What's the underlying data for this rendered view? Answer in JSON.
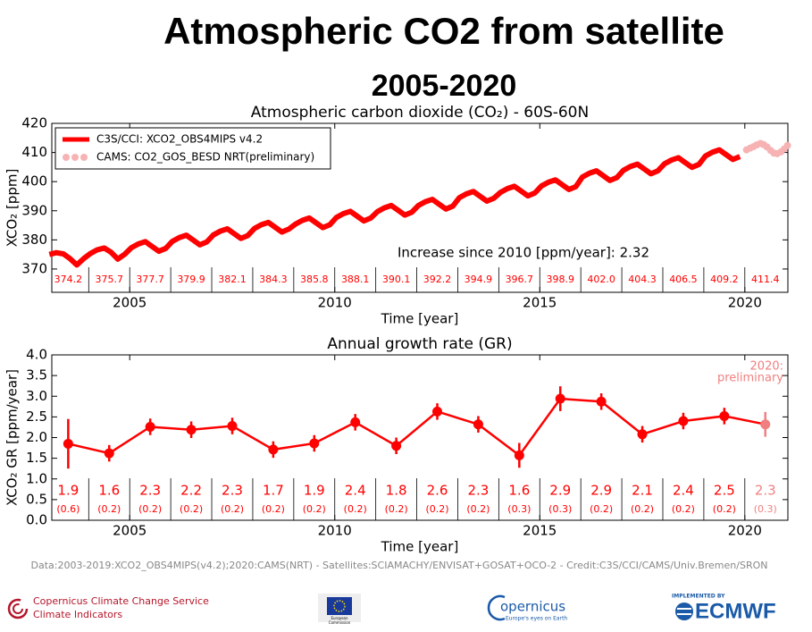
{
  "header": {
    "title": "Atmospheric CO2 from satellite",
    "subtitle": "2005-2020"
  },
  "chart_data": [
    {
      "type": "line",
      "title": "Atmospheric carbon dioxide (CO₂) - 60S-60N",
      "xlabel": "Time [year]",
      "ylabel": "XCO₂ [ppm]",
      "xlim": [
        2003.1,
        2021.05
      ],
      "ylim": [
        362,
        420
      ],
      "xticks": [
        2005,
        2010,
        2015,
        2020
      ],
      "yticks": [
        370,
        380,
        390,
        400,
        410,
        420
      ],
      "legend": "upper left",
      "series": [
        {
          "name": "C3S/CCI: XCO2_OBS4MIPS v4.2",
          "color": "#ff0000",
          "style": "line",
          "x": [
            2003.04,
            2003.21,
            2003.38,
            2003.54,
            2003.71,
            2003.88,
            2004.04,
            2004.21,
            2004.38,
            2004.54,
            2004.71,
            2004.88,
            2005.04,
            2005.21,
            2005.38,
            2005.54,
            2005.71,
            2005.88,
            2006.04,
            2006.21,
            2006.38,
            2006.54,
            2006.71,
            2006.88,
            2007.04,
            2007.21,
            2007.38,
            2007.54,
            2007.71,
            2007.88,
            2008.04,
            2008.21,
            2008.38,
            2008.54,
            2008.71,
            2008.88,
            2009.04,
            2009.21,
            2009.38,
            2009.54,
            2009.71,
            2009.88,
            2010.04,
            2010.21,
            2010.38,
            2010.54,
            2010.71,
            2010.88,
            2011.04,
            2011.21,
            2011.38,
            2011.54,
            2011.71,
            2011.88,
            2012.04,
            2012.21,
            2012.38,
            2012.54,
            2012.71,
            2012.88,
            2013.04,
            2013.21,
            2013.38,
            2013.54,
            2013.71,
            2013.88,
            2014.04,
            2014.21,
            2014.38,
            2014.54,
            2014.71,
            2014.88,
            2015.04,
            2015.21,
            2015.38,
            2015.54,
            2015.71,
            2015.88,
            2016.04,
            2016.21,
            2016.38,
            2016.54,
            2016.71,
            2016.88,
            2017.04,
            2017.21,
            2017.38,
            2017.54,
            2017.71,
            2017.88,
            2018.04,
            2018.21,
            2018.38,
            2018.54,
            2018.71,
            2018.88,
            2019.04,
            2019.21,
            2019.38,
            2019.54,
            2019.71,
            2019.88
          ],
          "values": [
            375.0,
            375.6,
            375.2,
            373.6,
            371.4,
            373.6,
            375.3,
            376.6,
            377.2,
            375.8,
            373.4,
            375.1,
            377.3,
            378.6,
            379.4,
            377.8,
            376.1,
            377.1,
            379.5,
            380.8,
            381.6,
            380.0,
            378.3,
            379.3,
            381.7,
            383.0,
            383.8,
            382.2,
            380.5,
            381.5,
            383.9,
            385.2,
            386.0,
            384.4,
            382.7,
            383.7,
            385.4,
            386.7,
            387.5,
            385.9,
            384.2,
            385.2,
            387.7,
            389.0,
            389.8,
            388.2,
            386.5,
            387.5,
            389.7,
            391.0,
            391.8,
            390.2,
            388.5,
            389.5,
            391.8,
            393.1,
            393.9,
            392.3,
            390.6,
            391.6,
            394.5,
            395.8,
            396.6,
            395.0,
            393.3,
            394.3,
            396.3,
            397.6,
            398.4,
            396.8,
            395.1,
            396.1,
            398.5,
            399.8,
            400.6,
            399.0,
            397.3,
            398.3,
            401.6,
            402.9,
            403.7,
            402.1,
            400.4,
            401.4,
            403.9,
            405.2,
            406.0,
            404.4,
            402.7,
            403.7,
            406.1,
            407.4,
            408.2,
            406.6,
            404.9,
            405.9,
            408.8,
            410.1,
            410.9,
            409.3,
            407.6,
            408.6
          ]
        },
        {
          "name": "CAMS: CO2_GOS_BESD NRT(preliminary)",
          "color": "#f7b3b3",
          "style": "dots",
          "x": [
            2020.04,
            2020.13,
            2020.21,
            2020.29,
            2020.38,
            2020.46,
            2020.54,
            2020.63,
            2020.71,
            2020.79,
            2020.88,
            2020.96,
            2021.04
          ],
          "values": [
            410.9,
            411.5,
            412.0,
            412.6,
            413.1,
            412.7,
            411.9,
            410.7,
            409.8,
            409.6,
            410.2,
            411.2,
            412.4
          ]
        }
      ],
      "annual_means": {
        "x": [
          2003.5,
          2004.5,
          2005.5,
          2006.5,
          2007.5,
          2008.5,
          2009.5,
          2010.5,
          2011.5,
          2012.5,
          2013.5,
          2014.5,
          2015.5,
          2016.5,
          2017.5,
          2018.5,
          2019.5,
          2020.5
        ],
        "values": [
          374.2,
          375.7,
          377.7,
          379.9,
          382.1,
          384.3,
          385.8,
          388.1,
          390.1,
          392.2,
          394.9,
          396.7,
          398.9,
          402.0,
          404.3,
          406.5,
          409.2,
          411.4
        ],
        "value_labels": [
          "374.2",
          "375.7",
          "377.7",
          "379.9",
          "382.1",
          "384.3",
          "385.8",
          "388.1",
          "390.1",
          "392.2",
          "394.9",
          "396.7",
          "398.9",
          "402.0",
          "404.3",
          "406.5",
          "409.2",
          "411.4"
        ]
      },
      "annotation": "Increase since 2010 [ppm/year]: 2.32"
    },
    {
      "type": "errorbar",
      "title": "Annual growth rate (GR)",
      "xlabel": "Time [year]",
      "ylabel": "XCO₂ GR [ppm/year]",
      "xlim": [
        2003.1,
        2021.05
      ],
      "ylim": [
        0,
        4
      ],
      "xticks": [
        2005,
        2010,
        2015,
        2020
      ],
      "yticks": [
        {
          "value": 0,
          "label": "0.0"
        },
        0.5,
        {
          "value": 1,
          "label": "1.0"
        },
        1.5,
        {
          "value": 2,
          "label": "2.0"
        },
        2.5,
        {
          "value": 3,
          "label": "3.0"
        },
        3.5,
        {
          "value": 4,
          "label": "4.0"
        }
      ],
      "color": "#ff0000",
      "x": [
        2003.5,
        2004.5,
        2005.5,
        2006.5,
        2007.5,
        2008.5,
        2009.5,
        2010.5,
        2011.5,
        2012.5,
        2013.5,
        2014.5,
        2015.5,
        2016.5,
        2017.5,
        2018.5,
        2019.5,
        2020.5
      ],
      "values": [
        1.85,
        1.62,
        2.26,
        2.19,
        2.28,
        1.71,
        1.86,
        2.37,
        1.8,
        2.63,
        2.32,
        1.57,
        2.94,
        2.87,
        2.08,
        2.4,
        2.52,
        2.32
      ],
      "errors": [
        0.6,
        0.2,
        0.2,
        0.2,
        0.2,
        0.2,
        0.2,
        0.2,
        0.2,
        0.2,
        0.2,
        0.3,
        0.3,
        0.2,
        0.2,
        0.2,
        0.2,
        0.3
      ],
      "value_labels": [
        "1.9",
        "1.6",
        "2.3",
        "2.2",
        "2.3",
        "1.7",
        "1.9",
        "2.4",
        "1.8",
        "2.6",
        "2.3",
        "1.6",
        "2.9",
        "2.9",
        "2.1",
        "2.4",
        "2.5",
        "2.3"
      ],
      "error_labels": [
        "(0.6)",
        "(0.2)",
        "(0.2)",
        "(0.2)",
        "(0.2)",
        "(0.2)",
        "(0.2)",
        "(0.2)",
        "(0.2)",
        "(0.2)",
        "(0.2)",
        "(0.3)",
        "(0.3)",
        "(0.2)",
        "(0.2)",
        "(0.2)",
        "(0.2)",
        "(0.3)"
      ],
      "colors": [
        "#ff0000",
        "#ff0000",
        "#ff0000",
        "#ff0000",
        "#ff0000",
        "#ff0000",
        "#ff0000",
        "#ff0000",
        "#ff0000",
        "#ff0000",
        "#ff0000",
        "#ff0000",
        "#ff0000",
        "#ff0000",
        "#ff0000",
        "#ff0000",
        "#ff0000",
        "#f08080"
      ],
      "annotation": [
        "2020:",
        "preliminary"
      ],
      "annotation_color": "#f08080"
    }
  ],
  "footer": {
    "credit": "Data:2003-2019:XCO2_OBS4MIPS(v4.2);2020:CAMS(NRT) - Satellites:SCIAMACHY/ENVISAT+GOSAT+OCO-2 - Credit:C3S/CCI/CAMS/Univ.Bremen/SRON",
    "logos": {
      "c3s": [
        "Copernicus Climate Change Service",
        "Climate Indicators"
      ],
      "eu": [
        "European",
        "Commission"
      ],
      "copernicus": [
        "opernicus",
        "Europe's eyes on Earth"
      ],
      "ecmwf": [
        "IMPLEMENTED BY",
        "ECMWF"
      ]
    }
  }
}
